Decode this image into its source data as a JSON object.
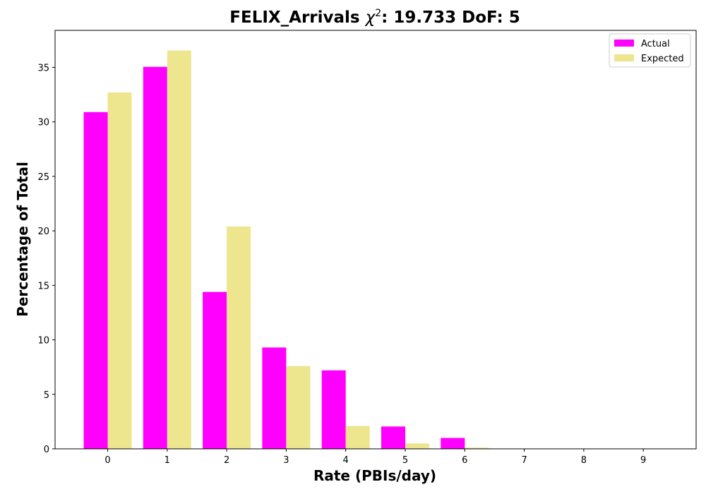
{
  "chart_data": {
    "type": "bar",
    "title_prefix": "FELIX_Arrivals ",
    "title_chi": "χ",
    "title_sup": "2",
    "title_suffix": ": 19.733 DoF: 5",
    "xlabel": "Rate (PBIs/day)",
    "ylabel": "Percentage of Total",
    "categories": [
      "0",
      "1",
      "2",
      "3",
      "4",
      "5",
      "6",
      "7",
      "8",
      "9"
    ],
    "series": [
      {
        "name": "Actual",
        "color": "#ff00ff",
        "values": [
          30.9,
          35.05,
          14.4,
          9.3,
          7.2,
          2.05,
          1.0,
          0,
          0,
          0
        ]
      },
      {
        "name": "Expected",
        "color": "#eee58f",
        "values": [
          32.7,
          36.55,
          20.4,
          7.6,
          2.1,
          0.5,
          0.12,
          0.02,
          0,
          0
        ]
      }
    ],
    "yticks": [
      0,
      5,
      10,
      15,
      20,
      25,
      30,
      35
    ],
    "ylim": [
      0,
      38.4
    ],
    "legend_position": "top-right",
    "grid": false
  }
}
